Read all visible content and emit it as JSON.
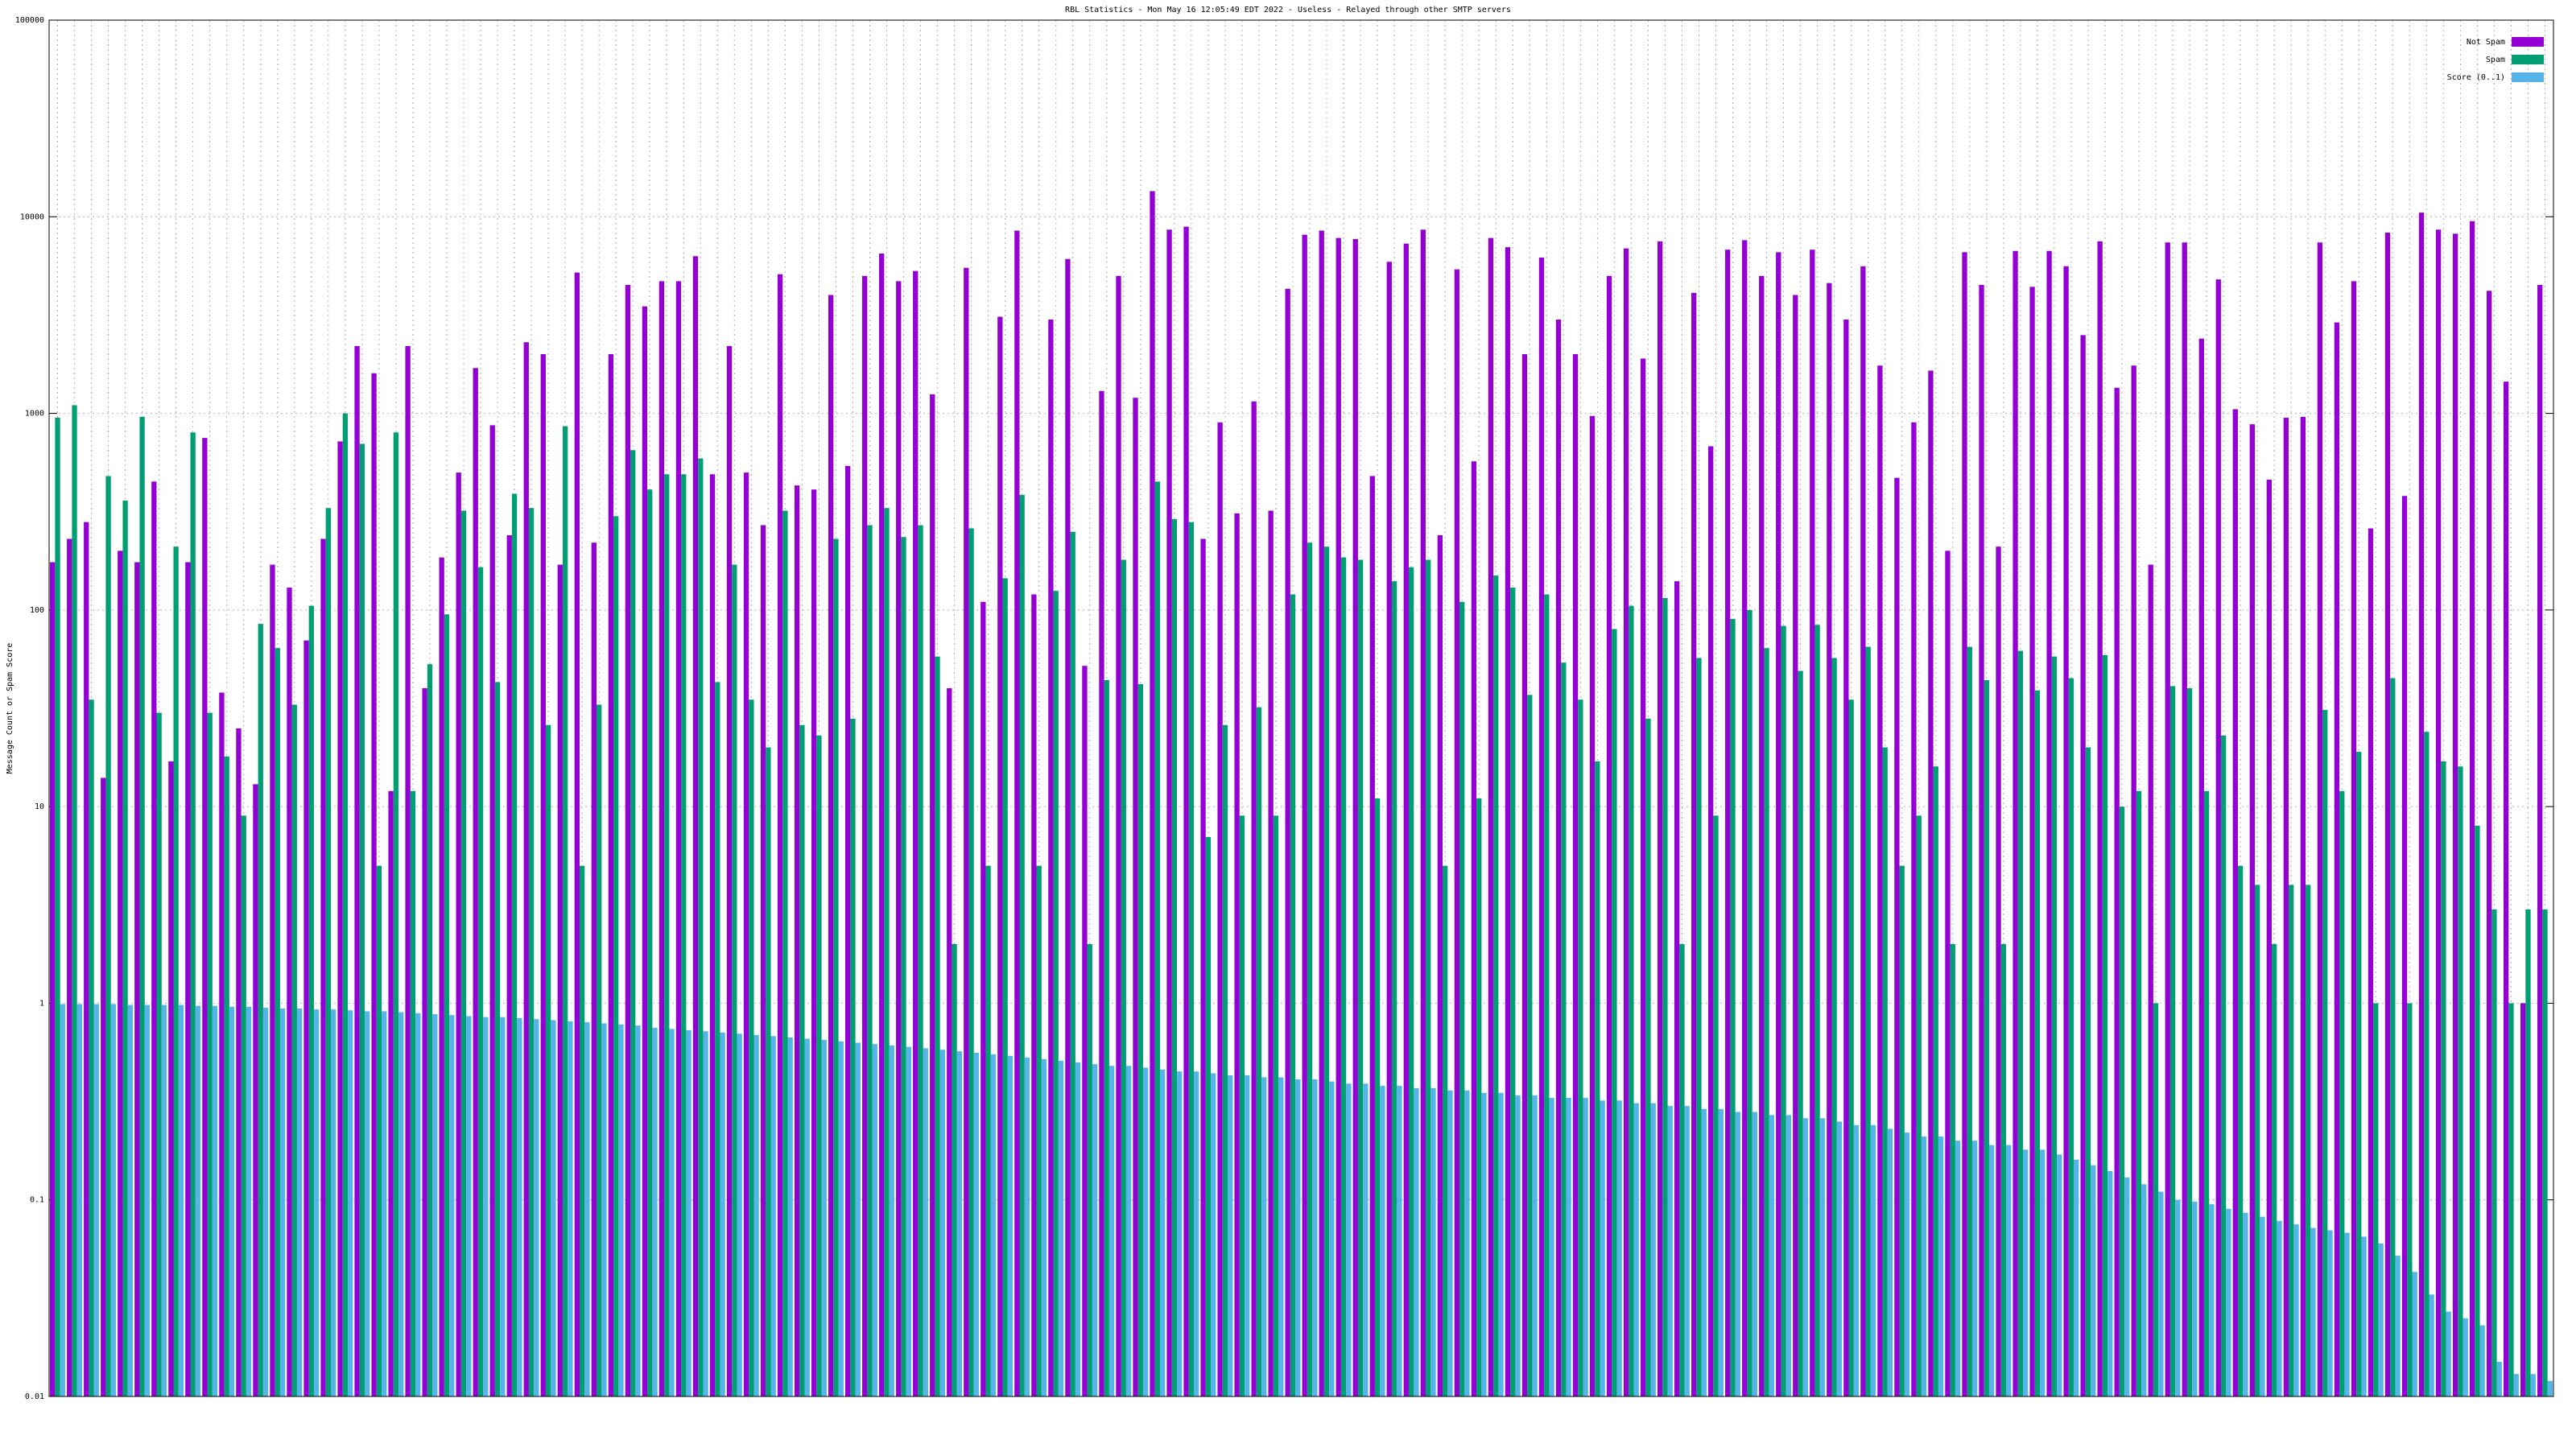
{
  "chart_data": {
    "type": "bar",
    "title": "RBL Statistics - Mon May 16 12:05:49 EDT 2022 - Useless - Relayed through other SMTP servers",
    "ylabel": "Message Count or Spam Score",
    "log_y": true,
    "grid": true,
    "legend": "top right",
    "ylim": [
      0.01,
      100000
    ],
    "yticks": [
      0.01,
      0.1,
      1,
      10,
      100,
      1000,
      10000,
      100000
    ],
    "categories": [
      null,
      null,
      null,
      null,
      null,
      null,
      null,
      null,
      null,
      null,
      null,
      null,
      null,
      null,
      null,
      null,
      null,
      null,
      null,
      null,
      null,
      null,
      null,
      null,
      null,
      null,
      null,
      null,
      null,
      null,
      null,
      null,
      null,
      null,
      null,
      null,
      null,
      null,
      null,
      null,
      null,
      null,
      null,
      null,
      null,
      null,
      null,
      null,
      null,
      null,
      null,
      null,
      null,
      null,
      null,
      null,
      null,
      null,
      null,
      null,
      null,
      null,
      null,
      null,
      null,
      null,
      null,
      null,
      null,
      null,
      null,
      null,
      null,
      null,
      null,
      null,
      null,
      null,
      null,
      null,
      null,
      null,
      null,
      null,
      null,
      null,
      null,
      null,
      null,
      null,
      null,
      null,
      null,
      null,
      null,
      null,
      null,
      null,
      null,
      null,
      null,
      null,
      null,
      null,
      null,
      null,
      null,
      null,
      null,
      null,
      null,
      null,
      null,
      null,
      null,
      null,
      null,
      null,
      null,
      null,
      null,
      null,
      null,
      null,
      null,
      null,
      null,
      null,
      null,
      null,
      null,
      null,
      null,
      null,
      null,
      null,
      null,
      null,
      null,
      null,
      null,
      null,
      null,
      null,
      null,
      null,
      null,
      null
    ],
    "series": [
      {
        "name": "Not Spam",
        "color": "#9400d3",
        "values": [
          175,
          230,
          280,
          14,
          200,
          175,
          450,
          17,
          175,
          750,
          38,
          25,
          13,
          170,
          130,
          70,
          230,
          720,
          2200,
          1600,
          12,
          2200,
          40,
          185,
          500,
          1700,
          870,
          240,
          2300,
          2000,
          170,
          5200,
          220,
          2000,
          4500,
          3500,
          4700,
          4700,
          6300,
          490,
          2200,
          500,
          270,
          5100,
          430,
          410,
          4000,
          540,
          5000,
          6500,
          4700,
          5300,
          1250,
          40,
          5500,
          110,
          3100,
          8500,
          120,
          3000,
          6100,
          52,
          1300,
          5000,
          1200,
          13500,
          8600,
          8900,
          230,
          900,
          310,
          1150,
          320,
          4300,
          8100,
          8500,
          7800,
          7700,
          480,
          5900,
          7300,
          8600,
          240,
          5400,
          570,
          7800,
          7000,
          2000,
          6200,
          3000,
          2000,
          970,
          5000,
          6900,
          1900,
          7500,
          140,
          4100,
          680,
          6800,
          7600,
          5000,
          6600,
          4000,
          6800,
          4600,
          3000,
          5600,
          1750,
          470,
          900,
          1650,
          200,
          6600,
          4500,
          210,
          6700,
          4400,
          6700,
          5600,
          2500,
          7500,
          1350,
          1750,
          170,
          7400,
          7400,
          2400,
          4800,
          1050,
          880,
          460,
          950,
          960,
          7400,
          2900,
          4700,
          260,
          8300,
          380,
          10500,
          8600,
          8200,
          9500,
          4200,
          1450,
          1,
          4500
        ]
      },
      {
        "name": "Spam",
        "color": "#009e73",
        "values": [
          950,
          1100,
          35,
          480,
          360,
          960,
          30,
          210,
          800,
          30,
          18,
          9,
          85,
          64,
          33,
          105,
          330,
          1000,
          700,
          5,
          800,
          12,
          53,
          95,
          320,
          165,
          43,
          390,
          330,
          26,
          860,
          5,
          33,
          300,
          650,
          410,
          490,
          490,
          590,
          43,
          170,
          35,
          20,
          320,
          26,
          23,
          230,
          28,
          270,
          330,
          235,
          270,
          58,
          2,
          260,
          5,
          145,
          385,
          5,
          125,
          250,
          2,
          44,
          180,
          42,
          450,
          290,
          280,
          7,
          26,
          9,
          32,
          9,
          120,
          220,
          210,
          185,
          180,
          11,
          140,
          165,
          180,
          5,
          110,
          11,
          150,
          130,
          37,
          120,
          54,
          35,
          17,
          80,
          105,
          28,
          115,
          2,
          57,
          9,
          90,
          100,
          64,
          83,
          49,
          84,
          57,
          35,
          65,
          20,
          5,
          9,
          16,
          2,
          65,
          44,
          2,
          62,
          39,
          58,
          45,
          20,
          59,
          10,
          12,
          1,
          41,
          40,
          12,
          23,
          5,
          4,
          2,
          4,
          4,
          31,
          12,
          19,
          1,
          45,
          1,
          24,
          17,
          16,
          8,
          3,
          1,
          3,
          3
        ]
      },
      {
        "name": "Score (0..1)",
        "color": "#56b4e9",
        "values": [
          0.99,
          0.99,
          0.99,
          0.99,
          0.98,
          0.98,
          0.98,
          0.98,
          0.97,
          0.97,
          0.96,
          0.96,
          0.95,
          0.94,
          0.94,
          0.93,
          0.93,
          0.92,
          0.91,
          0.91,
          0.9,
          0.89,
          0.88,
          0.87,
          0.86,
          0.85,
          0.85,
          0.84,
          0.83,
          0.82,
          0.81,
          0.8,
          0.79,
          0.78,
          0.77,
          0.75,
          0.74,
          0.73,
          0.72,
          0.71,
          0.7,
          0.69,
          0.68,
          0.67,
          0.66,
          0.65,
          0.64,
          0.63,
          0.62,
          0.61,
          0.6,
          0.59,
          0.58,
          0.57,
          0.56,
          0.55,
          0.54,
          0.53,
          0.52,
          0.51,
          0.5,
          0.49,
          0.48,
          0.48,
          0.47,
          0.46,
          0.45,
          0.45,
          0.44,
          0.43,
          0.43,
          0.42,
          0.42,
          0.41,
          0.41,
          0.4,
          0.39,
          0.39,
          0.38,
          0.38,
          0.37,
          0.37,
          0.36,
          0.36,
          0.35,
          0.35,
          0.34,
          0.34,
          0.33,
          0.33,
          0.33,
          0.32,
          0.32,
          0.31,
          0.31,
          0.3,
          0.3,
          0.29,
          0.29,
          0.28,
          0.28,
          0.27,
          0.27,
          0.26,
          0.26,
          0.25,
          0.24,
          0.24,
          0.23,
          0.22,
          0.21,
          0.21,
          0.2,
          0.2,
          0.19,
          0.19,
          0.18,
          0.18,
          0.17,
          0.16,
          0.15,
          0.14,
          0.13,
          0.12,
          0.11,
          0.1,
          0.098,
          0.095,
          0.09,
          0.086,
          0.082,
          0.078,
          0.075,
          0.072,
          0.07,
          0.068,
          0.065,
          0.06,
          0.052,
          0.043,
          0.033,
          0.027,
          0.025,
          0.023,
          0.015,
          0.013,
          0.013,
          0.012
        ]
      }
    ]
  }
}
